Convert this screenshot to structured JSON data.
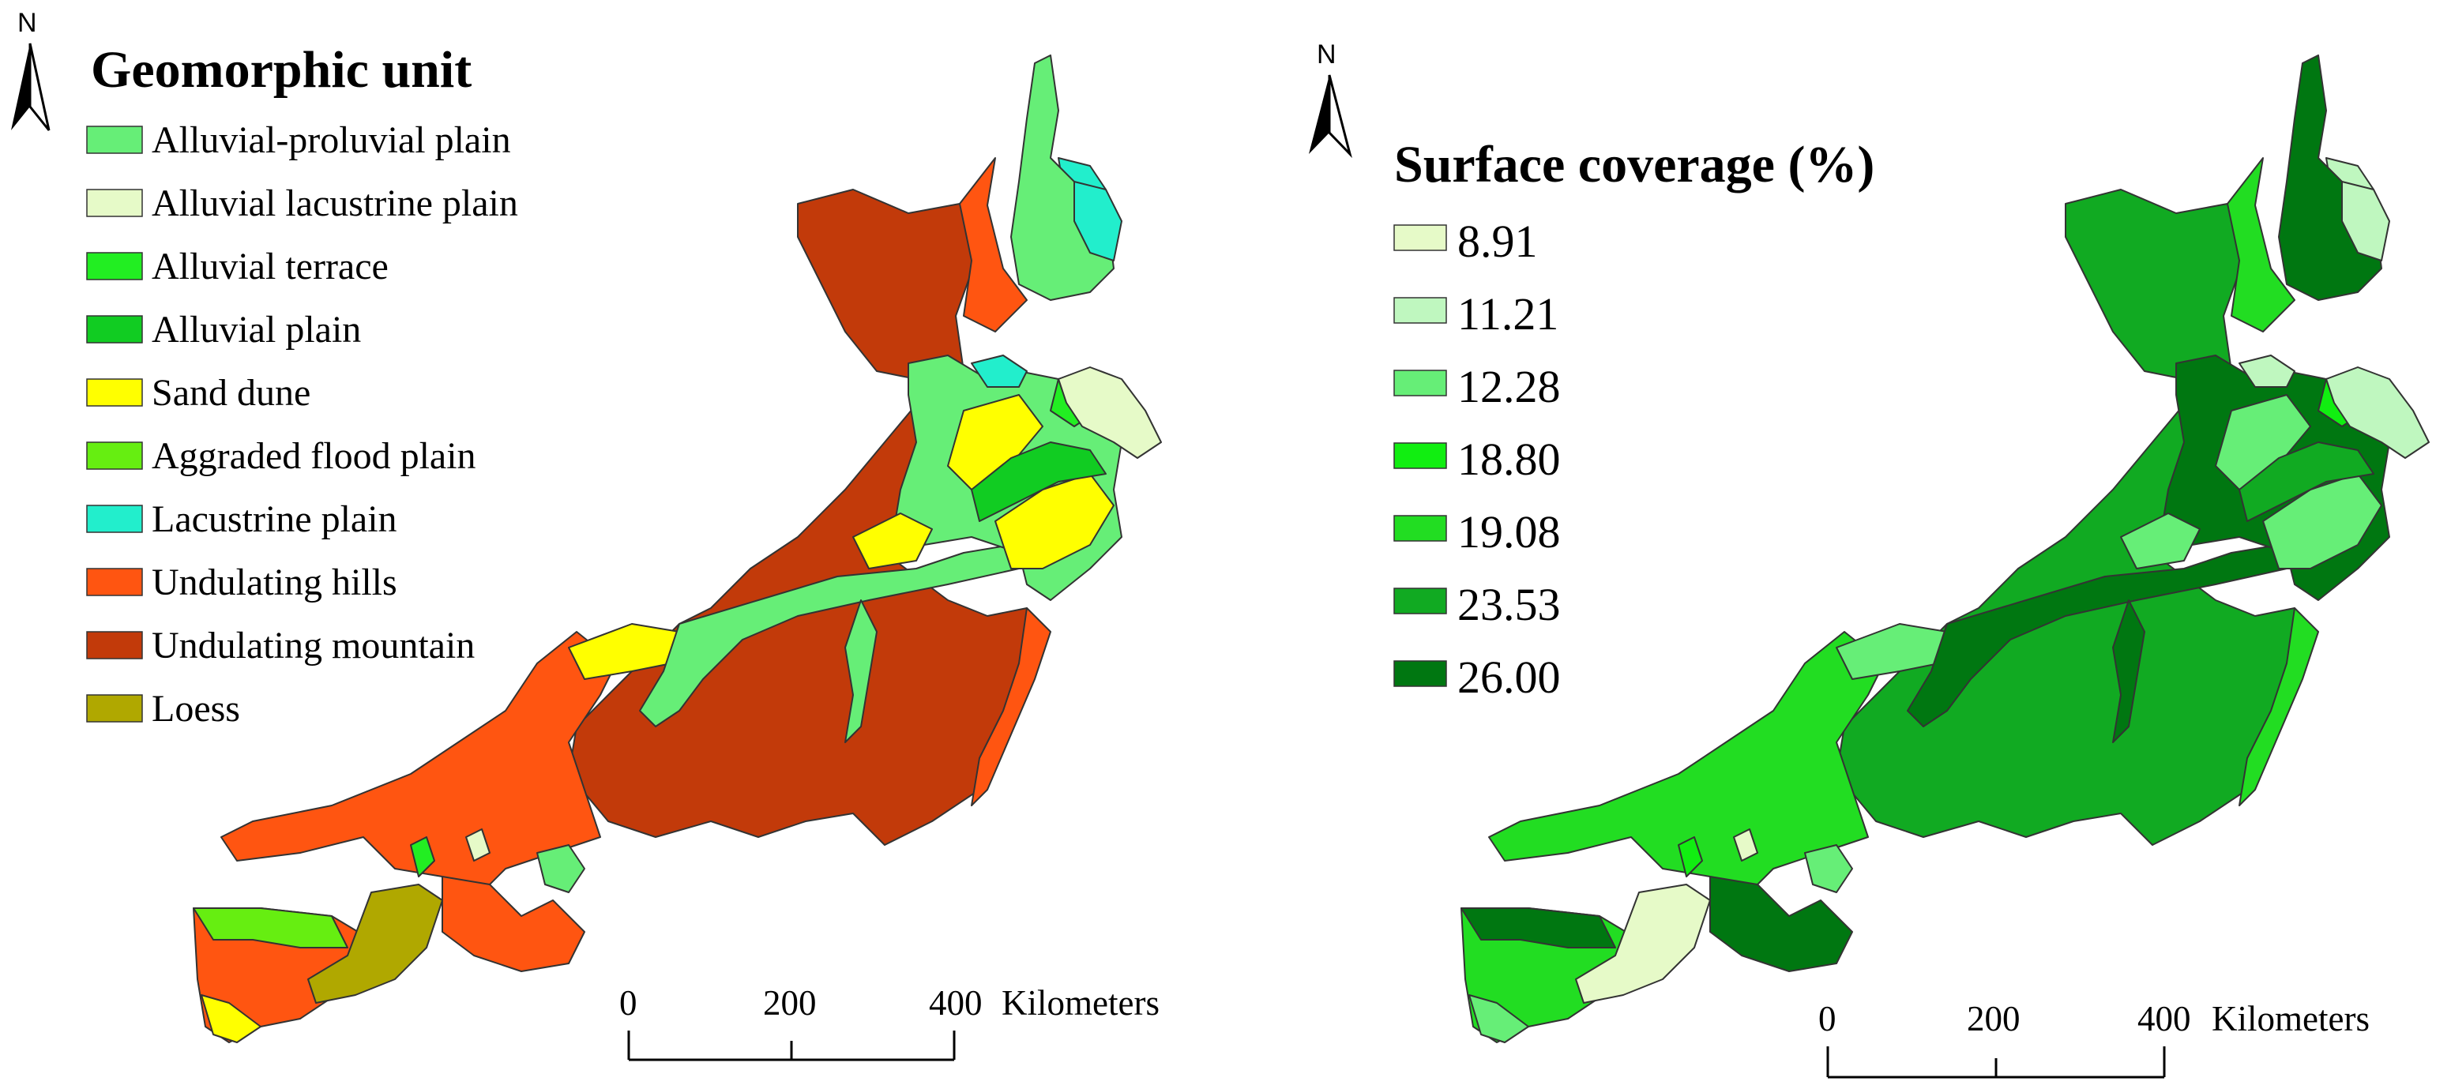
{
  "colors": {
    "alluvial_proluvial_plain": "#66ee77",
    "alluvial_lacustrine_plain": "#e6fac8",
    "alluvial_terrace": "#22ee22",
    "alluvial_plain": "#11cc22",
    "sand_dune": "#ffff00",
    "aggraded_flood_plain": "#66ee11",
    "lacustrine_plain": "#22eecc",
    "undulating_hills": "#ff5511",
    "undulating_mountain": "#c23a0a",
    "loess": "#b0a800",
    "cov_1": "#e6fac8",
    "cov_2": "#bff7bf",
    "cov_3": "#66ee77",
    "cov_4": "#11ee11",
    "cov_5": "#22dd22",
    "cov_6": "#11aa22",
    "cov_7": "#007711",
    "outline": "#333333"
  },
  "left_map": {
    "north_label": "N",
    "legend_title": "Geomorphic unit",
    "legend": [
      {
        "label": "Alluvial-proluvial plain",
        "color": "#66ee77"
      },
      {
        "label": "Alluvial lacustrine plain",
        "color": "#e6fac8"
      },
      {
        "label": "Alluvial terrace",
        "color": "#22ee22"
      },
      {
        "label": "Alluvial plain",
        "color": "#11cc22"
      },
      {
        "label": "Sand dune",
        "color": "#ffff00"
      },
      {
        "label": "Aggraded flood plain",
        "color": "#66ee11"
      },
      {
        "label": "Lacustrine plain",
        "color": "#22eecc"
      },
      {
        "label": "Undulating hills",
        "color": "#ff5511"
      },
      {
        "label": "Undulating mountain",
        "color": "#c23a0a"
      },
      {
        "label": "Loess",
        "color": "#b0a800"
      }
    ],
    "scale": {
      "ticks": [
        "0",
        "200",
        "400"
      ],
      "unit": "Kilometers"
    }
  },
  "right_map": {
    "north_label": "N",
    "legend_title": "Surface coverage (%)",
    "legend": [
      {
        "label": "8.91",
        "color": "#e6fac8"
      },
      {
        "label": "11.21",
        "color": "#bff7bf"
      },
      {
        "label": "12.28",
        "color": "#66ee77"
      },
      {
        "label": "18.80",
        "color": "#11ee11"
      },
      {
        "label": "19.08",
        "color": "#22dd22"
      },
      {
        "label": "23.53",
        "color": "#11aa22"
      },
      {
        "label": "26.00",
        "color": "#007711"
      }
    ],
    "scale": {
      "ticks": [
        "0",
        "200",
        "400"
      ],
      "unit": "Kilometers"
    }
  }
}
